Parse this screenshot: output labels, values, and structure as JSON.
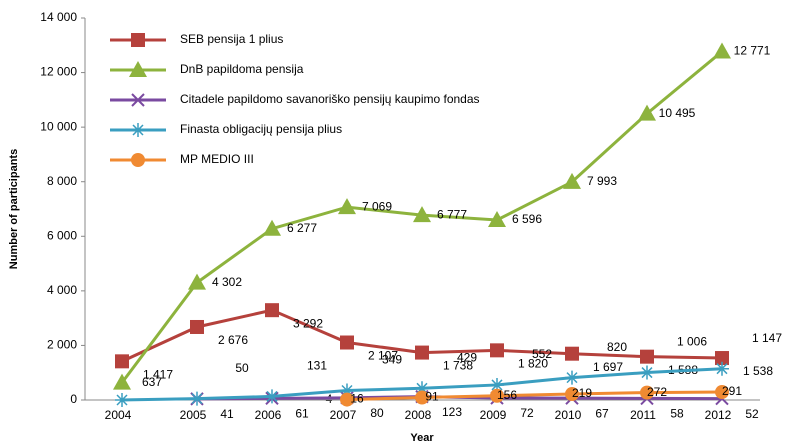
{
  "chart_data": {
    "type": "line",
    "x_label": "Year",
    "y_label": "Number of participants",
    "categories": [
      "2004",
      "2005",
      "2006",
      "2007",
      "2008",
      "2009",
      "2010",
      "2011",
      "2012"
    ],
    "ylim": [
      0,
      14000
    ],
    "yticks": [
      0,
      {
        "value": 2000,
        "label": "2 000"
      },
      {
        "value": 4000,
        "label": "4 000"
      },
      {
        "value": 6000,
        "label": "6 000"
      },
      {
        "value": 8000,
        "label": "8 000"
      },
      {
        "value": 10000,
        "label": "10 000"
      },
      {
        "value": 12000,
        "label": "12 000"
      },
      {
        "value": 14000,
        "label": "14 000"
      }
    ],
    "legend": "upper left",
    "series": [
      {
        "name": "SEB pensija 1 plius",
        "color": "#b5413c",
        "marker": "square",
        "values": [
          1417,
          2676,
          3292,
          2107,
          1738,
          1820,
          1697,
          1588,
          1538
        ],
        "value_labels": [
          "1 417",
          "2 676",
          "3 292",
          "2 107",
          "1 738",
          "1 820",
          "1 697",
          "1 588",
          "1 538"
        ]
      },
      {
        "name": "DnB papildoma pensija",
        "color": "#8db33d",
        "marker": "triangle",
        "values": [
          637,
          4302,
          6277,
          7069,
          6777,
          6596,
          7993,
          10495,
          12771
        ],
        "value_labels": [
          "637",
          "4 302",
          "6 277",
          "7 069",
          "6 777",
          "6 596",
          "7 993",
          "10 495",
          "12 771"
        ]
      },
      {
        "name": "Citadele papildomo savanoriško pensijų kaupimo fondas",
        "color": "#7a4aa0",
        "marker": "x",
        "values": [
          null,
          41,
          61,
          80,
          123,
          72,
          67,
          58,
          52
        ],
        "value_labels": [
          null,
          "41",
          "61",
          "80",
          "123",
          "72",
          "67",
          "58",
          "52"
        ]
      },
      {
        "name": "Finasta obligacijų pensija plius",
        "color": "#3a9ec0",
        "marker": "star",
        "values": [
          0,
          50,
          131,
          349,
          429,
          552,
          820,
          1006,
          1147
        ],
        "value_labels": [
          null,
          "50",
          "131",
          "349",
          "429",
          "552",
          "820",
          "1 006",
          "1 147"
        ]
      },
      {
        "name": "MP MEDIO III",
        "color": "#f08a32",
        "marker": "circle",
        "values": [
          null,
          null,
          null,
          16,
          91,
          156,
          219,
          272,
          291
        ],
        "value_labels": [
          null,
          null,
          null,
          "16",
          "91",
          "156",
          "219",
          "272",
          "291"
        ]
      }
    ],
    "annotations": [
      "4"
    ]
  }
}
